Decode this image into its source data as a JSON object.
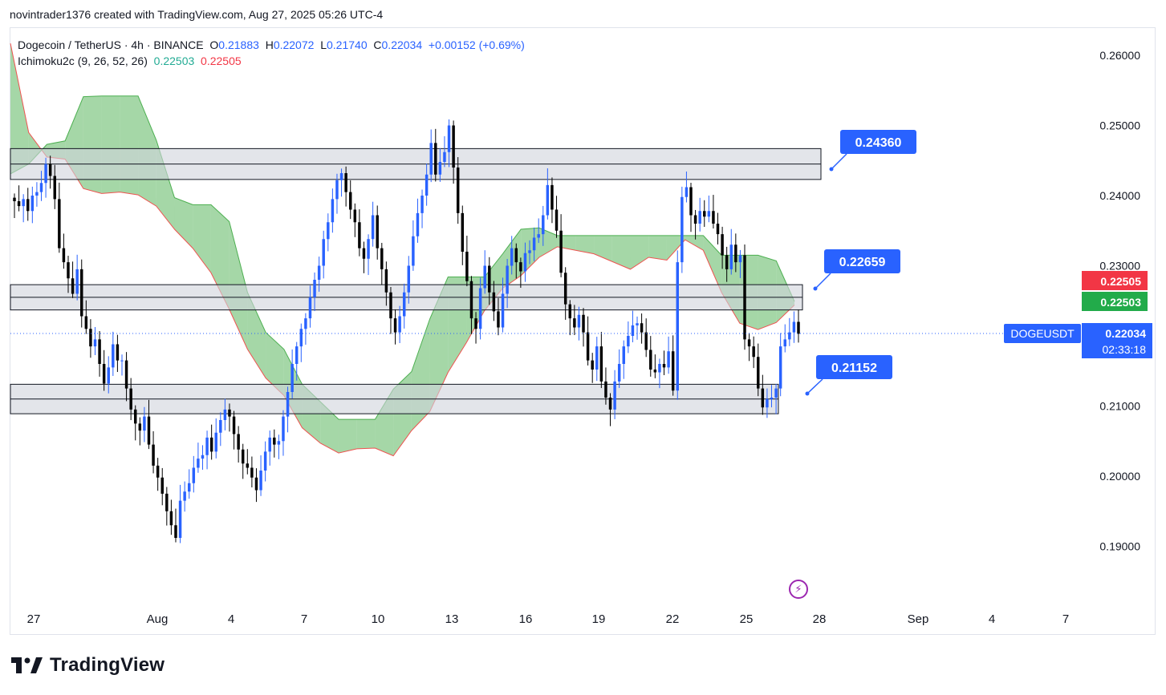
{
  "header": {
    "credit": "novintrader1376 created with TradingView.com, Aug 27, 2025 05:26 UTC-4"
  },
  "legend": {
    "symbol": "Dogecoin / TetherUS · 4h · BINANCE",
    "o_label": "O",
    "o_value": "0.21883",
    "h_label": "H",
    "h_value": "0.22072",
    "l_label": "L",
    "l_value": "0.21740",
    "c_label": "C",
    "c_value": "0.22034",
    "change": "+0.00152 (+0.69%)",
    "indicator": "Ichimoku2c (9, 26, 52, 26)",
    "ind_val1": "0.22503",
    "ind_val2": "0.22505"
  },
  "footer": {
    "brand": "TradingView"
  },
  "colors": {
    "up": "#2962ff",
    "down": "#000000",
    "cloud": "#4caf50",
    "cloud_edge": "#ef5350",
    "zone_fill": "#d1d4dc",
    "label_blue": "#2962ff",
    "tag_red": "#f23645",
    "tag_green": "#22ab4a"
  },
  "chart_data": {
    "type": "candlestick",
    "symbol": "DOGEUSDT",
    "interval": "4h",
    "ylim": [
      0.1825,
      0.2635
    ],
    "y_ticks": [
      "0.26000",
      "0.25000",
      "0.24000",
      "0.23000",
      "0.21000",
      "0.20000",
      "0.19000"
    ],
    "x_ticks": [
      "27",
      "Aug",
      "4",
      "7",
      "10",
      "13",
      "16",
      "19",
      "22",
      "25",
      "28",
      "Sep",
      "4",
      "7"
    ],
    "price_tags": [
      {
        "text": "0.22505",
        "color": "red"
      },
      {
        "text": "0.22503",
        "color": "green"
      },
      {
        "text": "0.22034",
        "sub": "02:33:18",
        "color": "blue"
      }
    ],
    "symbol_tag": "DOGEUSDT",
    "last_price": 0.22034,
    "zones": [
      {
        "low": 0.2423,
        "mid": 0.2445,
        "high": 0.2467
      },
      {
        "low": 0.2237,
        "mid": 0.2255,
        "high": 0.2273
      },
      {
        "low": 0.2089,
        "mid": 0.211,
        "high": 0.2131
      }
    ],
    "level_labels": [
      {
        "text": "0.24360",
        "price": 0.2436
      },
      {
        "text": "0.22659",
        "price": 0.2266
      },
      {
        "text": "0.21152",
        "price": 0.2115
      }
    ],
    "trendline": [
      {
        "t": 17.2,
        "price": 0.2428
      },
      {
        "t": 25.0,
        "price": 0.2425
      }
    ],
    "cloud_a": [
      [
        0,
        0.2617
      ],
      [
        1,
        0.249
      ],
      [
        2,
        0.2455
      ],
      [
        3,
        0.2452
      ],
      [
        4,
        0.241
      ],
      [
        5,
        0.2403
      ],
      [
        6,
        0.2405
      ],
      [
        7,
        0.2401
      ],
      [
        8,
        0.2385
      ],
      [
        9,
        0.2352
      ],
      [
        10,
        0.2325
      ],
      [
        11,
        0.229
      ],
      [
        12,
        0.2238
      ],
      [
        13,
        0.2181
      ],
      [
        14,
        0.214
      ],
      [
        15,
        0.2115
      ],
      [
        16,
        0.2069
      ],
      [
        17,
        0.2047
      ],
      [
        18,
        0.2033
      ],
      [
        19,
        0.2039
      ],
      [
        20,
        0.204
      ],
      [
        21,
        0.2029
      ],
      [
        22,
        0.2065
      ],
      [
        23,
        0.2092
      ],
      [
        24,
        0.2148
      ],
      [
        25,
        0.219
      ],
      [
        26,
        0.2236
      ],
      [
        27,
        0.2268
      ],
      [
        28,
        0.2286
      ],
      [
        29,
        0.2312
      ],
      [
        30,
        0.2327
      ],
      [
        31,
        0.2322
      ],
      [
        32,
        0.2317
      ],
      [
        33,
        0.2306
      ],
      [
        34,
        0.2295
      ],
      [
        35,
        0.2312
      ],
      [
        36,
        0.2308
      ],
      [
        37,
        0.2337
      ],
      [
        38,
        0.2322
      ],
      [
        39,
        0.2262
      ],
      [
        40,
        0.2218
      ],
      [
        41,
        0.2209
      ],
      [
        42,
        0.2219
      ],
      [
        43,
        0.2244
      ]
    ],
    "cloud_b": [
      [
        0,
        0.2431
      ],
      [
        1,
        0.2445
      ],
      [
        2,
        0.2473
      ],
      [
        3,
        0.2478
      ],
      [
        4,
        0.2541
      ],
      [
        5,
        0.2542
      ],
      [
        6,
        0.2542
      ],
      [
        7,
        0.2542
      ],
      [
        8,
        0.2479
      ],
      [
        9,
        0.2397
      ],
      [
        10,
        0.2387
      ],
      [
        11,
        0.2387
      ],
      [
        12,
        0.2363
      ],
      [
        13,
        0.2262
      ],
      [
        14,
        0.2205
      ],
      [
        15,
        0.2181
      ],
      [
        16,
        0.2131
      ],
      [
        17,
        0.2106
      ],
      [
        18,
        0.2081
      ],
      [
        19,
        0.2081
      ],
      [
        20,
        0.2081
      ],
      [
        21,
        0.2124
      ],
      [
        22,
        0.2149
      ],
      [
        23,
        0.2224
      ],
      [
        24,
        0.2284
      ],
      [
        25,
        0.2284
      ],
      [
        26,
        0.2284
      ],
      [
        27,
        0.2317
      ],
      [
        28,
        0.2352
      ],
      [
        29,
        0.2354
      ],
      [
        30,
        0.2343
      ],
      [
        31,
        0.2343
      ],
      [
        32,
        0.2343
      ],
      [
        33,
        0.2343
      ],
      [
        34,
        0.2343
      ],
      [
        35,
        0.2343
      ],
      [
        36,
        0.2343
      ],
      [
        37,
        0.2343
      ],
      [
        38,
        0.2343
      ],
      [
        39,
        0.2315
      ],
      [
        40,
        0.2315
      ],
      [
        41,
        0.2315
      ],
      [
        42,
        0.2307
      ],
      [
        43,
        0.2249
      ]
    ],
    "closes": [
      0.2392,
      0.2385,
      0.2395,
      0.2378,
      0.24,
      0.2405,
      0.2418,
      0.2445,
      0.2428,
      0.2395,
      0.2325,
      0.2305,
      0.2282,
      0.226,
      0.2295,
      0.2228,
      0.221,
      0.2185,
      0.2195,
      0.216,
      0.2132,
      0.2155,
      0.2188,
      0.2165,
      0.2165,
      0.2125,
      0.2095,
      0.2075,
      0.2065,
      0.2085,
      0.2045,
      0.2015,
      0.1998,
      0.1975,
      0.195,
      0.193,
      0.1912,
      0.1965,
      0.1978,
      0.199,
      0.2012,
      0.2025,
      0.203,
      0.2055,
      0.2035,
      0.2062,
      0.208,
      0.2095,
      0.2085,
      0.206,
      0.2038,
      0.2018,
      0.2012,
      0.1998,
      0.198,
      0.2008,
      0.2035,
      0.2055,
      0.2045,
      0.205,
      0.2085,
      0.212,
      0.216,
      0.2185,
      0.221,
      0.2225,
      0.2255,
      0.228,
      0.23,
      0.2338,
      0.2362,
      0.2395,
      0.2422,
      0.2432,
      0.2405,
      0.238,
      0.2362,
      0.2325,
      0.231,
      0.2338,
      0.2372,
      0.2325,
      0.2295,
      0.2262,
      0.2225,
      0.2205,
      0.2228,
      0.2262,
      0.23,
      0.2342,
      0.2375,
      0.24,
      0.243,
      0.2475,
      0.243,
      0.2448,
      0.2462,
      0.25,
      0.244,
      0.2375,
      0.232,
      0.2278,
      0.2225,
      0.221,
      0.2268,
      0.23,
      0.2262,
      0.2235,
      0.2212,
      0.226,
      0.23,
      0.2325,
      0.2305,
      0.2292,
      0.2318,
      0.2322,
      0.234,
      0.2345,
      0.2372,
      0.2415,
      0.238,
      0.235,
      0.229,
      0.2245,
      0.2225,
      0.2212,
      0.223,
      0.2205,
      0.2165,
      0.2152,
      0.2185,
      0.2135,
      0.2112,
      0.2095,
      0.2135,
      0.216,
      0.2185,
      0.22,
      0.2215,
      0.2218,
      0.2205,
      0.218,
      0.2152,
      0.2148,
      0.216,
      0.2155,
      0.2178,
      0.2122,
      0.2305,
      0.2398,
      0.2412,
      0.2372,
      0.236,
      0.2378,
      0.237,
      0.2378,
      0.236,
      0.2345,
      0.2315,
      0.2295,
      0.233,
      0.2305,
      0.2315,
      0.2195,
      0.2185,
      0.217,
      0.2125,
      0.2098,
      0.211,
      0.2112,
      0.2125,
      0.2185,
      0.2195,
      0.2205,
      0.222,
      0.2203
    ]
  }
}
